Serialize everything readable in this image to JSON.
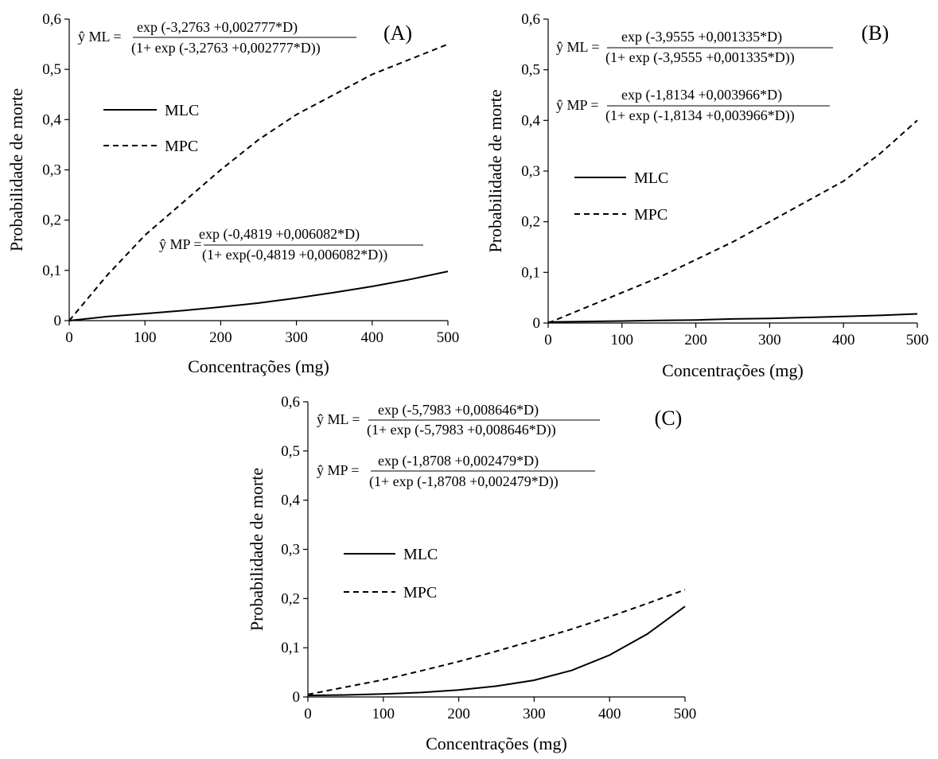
{
  "chart_data": [
    {
      "panel": "(A)",
      "type": "line",
      "ylabel": "Probabilidade de morte",
      "xlabel": "Concentrações  (mg)",
      "xlim": [
        0,
        500
      ],
      "ylim": [
        0,
        0.6
      ],
      "x_ticks": [
        "0",
        "100",
        "200",
        "300",
        "400",
        "500"
      ],
      "y_ticks": [
        "0",
        "0,1",
        "0,2",
        "0,3",
        "0,4",
        "0,5",
        "0,6"
      ],
      "legend": {
        "placement": "upper-left",
        "entries": [
          "MLC",
          "MPC"
        ]
      },
      "equations": [
        {
          "lhs": "ŷ ML =",
          "num": "exp (-3,2763 +0,002777*D)",
          "den": "(1+ exp (-3,2763 +0,002777*D))"
        },
        {
          "lhs": "ŷ MP =",
          "num": "exp (-0,4819 +0,006082*D)",
          "den": "(1+ exp(-0,4819 +0,006082*D))"
        }
      ],
      "x": [
        0,
        50,
        100,
        150,
        200,
        250,
        300,
        350,
        400,
        450,
        500
      ],
      "series": [
        {
          "name": "MLC",
          "style": "solid",
          "values": [
            0.0,
            0.008,
            0.014,
            0.02,
            0.027,
            0.035,
            0.045,
            0.056,
            0.068,
            0.082,
            0.098
          ]
        },
        {
          "name": "MPC",
          "style": "dashed",
          "values": [
            0.0,
            0.09,
            0.17,
            0.235,
            0.3,
            0.36,
            0.41,
            0.45,
            0.49,
            0.52,
            0.55
          ]
        }
      ]
    },
    {
      "panel": "(B)",
      "type": "line",
      "ylabel": "Probabilidade de morte",
      "xlabel": "Concentrações (mg)",
      "xlim": [
        0,
        500
      ],
      "ylim": [
        0,
        0.6
      ],
      "x_ticks": [
        "0",
        "100",
        "200",
        "300",
        "400",
        "500"
      ],
      "y_ticks": [
        "0",
        "0,1",
        "0,2",
        "0,3",
        "0,4",
        "0,5",
        "0,6"
      ],
      "legend": {
        "placement": "middle-left",
        "entries": [
          "MLC",
          "MPC"
        ]
      },
      "equations": [
        {
          "lhs": "ŷ ML =",
          "num": "exp (-3,9555 +0,001335*D)",
          "den": "(1+ exp (-3,9555 +0,001335*D))"
        },
        {
          "lhs": "ŷ MP =",
          "num": "exp (-1,8134 +0,003966*D)",
          "den": "(1+ exp (-1,8134 +0,003966*D))"
        }
      ],
      "x": [
        0,
        50,
        100,
        150,
        200,
        250,
        300,
        350,
        400,
        450,
        500
      ],
      "series": [
        {
          "name": "MLC",
          "style": "solid",
          "values": [
            0.002,
            0.003,
            0.004,
            0.005,
            0.006,
            0.008,
            0.009,
            0.011,
            0.013,
            0.015,
            0.018
          ]
        },
        {
          "name": "MPC",
          "style": "dashed",
          "values": [
            0.0,
            0.03,
            0.06,
            0.09,
            0.125,
            0.16,
            0.2,
            0.24,
            0.28,
            0.335,
            0.4
          ]
        }
      ]
    },
    {
      "panel": "(C)",
      "type": "line",
      "ylabel": "Probabilidade de morte",
      "xlabel": "Concentrações (mg)",
      "xlim": [
        0,
        500
      ],
      "ylim": [
        0,
        0.6
      ],
      "x_ticks": [
        "0",
        "100",
        "200",
        "300",
        "400",
        "500"
      ],
      "y_ticks": [
        "0",
        "0,1",
        "0,2",
        "0,3",
        "0,4",
        "0,5",
        "0,6"
      ],
      "legend": {
        "placement": "middle-left",
        "entries": [
          "MLC",
          "MPC"
        ]
      },
      "equations": [
        {
          "lhs": "ŷ ML =",
          "num": "exp (-5,7983 +0,008646*D)",
          "den": "(1+ exp (-5,7983 +0,008646*D))"
        },
        {
          "lhs": "ŷ MP =",
          "num": "exp (-1,8708 +0,002479*D)",
          "den": "(1+ exp (-1,8708 +0,002479*D))"
        }
      ],
      "x": [
        0,
        50,
        100,
        150,
        200,
        250,
        300,
        350,
        400,
        450,
        500
      ],
      "series": [
        {
          "name": "MLC",
          "style": "solid",
          "values": [
            0.003,
            0.004,
            0.006,
            0.009,
            0.014,
            0.022,
            0.034,
            0.054,
            0.085,
            0.128,
            0.184
          ]
        },
        {
          "name": "MPC",
          "style": "dashed",
          "values": [
            0.005,
            0.02,
            0.035,
            0.053,
            0.072,
            0.093,
            0.115,
            0.138,
            0.163,
            0.19,
            0.218
          ]
        }
      ]
    }
  ]
}
